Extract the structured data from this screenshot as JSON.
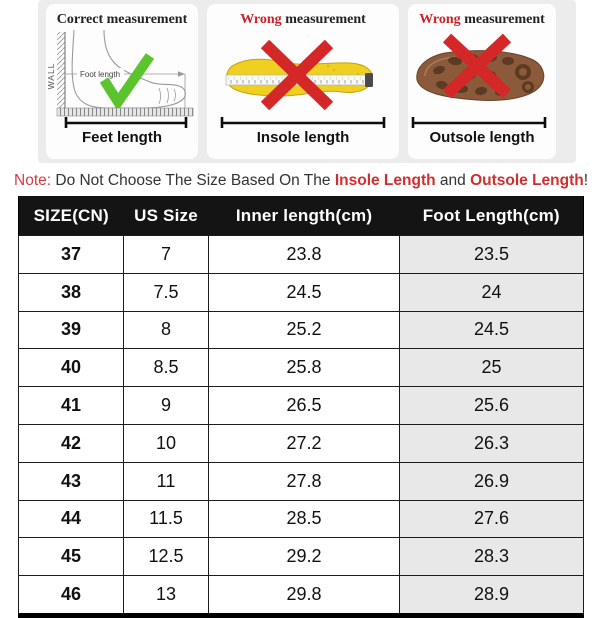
{
  "panels": {
    "correct": {
      "title": "Correct measurement",
      "wall_label": "WALL",
      "inner_measure_label": "Foot length",
      "label": "Feet length"
    },
    "insole": {
      "title_wrong": "Wrong",
      "title_rest": " measurement",
      "label": "Insole length"
    },
    "outsole": {
      "title_wrong": "Wrong",
      "title_rest": " measurement",
      "label": "Outsole length"
    }
  },
  "note": {
    "prefix": "Note:",
    "body": " Do Not Choose The Size Based On The ",
    "insole": "Insole Length",
    "conjunction": " and ",
    "outsole": "Outsole Length",
    "suffix": "!"
  },
  "table": {
    "columns": [
      "SIZE(CN)",
      "US Size",
      "Inner length(cm)",
      "Foot Length(cm)"
    ],
    "rows": [
      [
        "37",
        "7",
        "23.8",
        "23.5"
      ],
      [
        "38",
        "7.5",
        "24.5",
        "24"
      ],
      [
        "39",
        "8",
        "25.2",
        "24.5"
      ],
      [
        "40",
        "8.5",
        "25.8",
        "25"
      ],
      [
        "41",
        "9",
        "26.5",
        "25.6"
      ],
      [
        "42",
        "10",
        "27.2",
        "26.3"
      ],
      [
        "43",
        "11",
        "27.8",
        "26.9"
      ],
      [
        "44",
        "11.5",
        "28.5",
        "27.6"
      ],
      [
        "45",
        "12.5",
        "29.2",
        "28.3"
      ],
      [
        "46",
        "13",
        "29.8",
        "28.9"
      ]
    ]
  },
  "colors": {
    "wrong_red": "#cc2127",
    "cross_red": "#d42828",
    "check_green": "#5bc42d",
    "note_red": "#d93a43",
    "header_bg": "#141414",
    "foot_column_bg": "#e8e8e8",
    "insole_yellow": "#efd020",
    "outsole_brown": "#8a5a3b"
  }
}
